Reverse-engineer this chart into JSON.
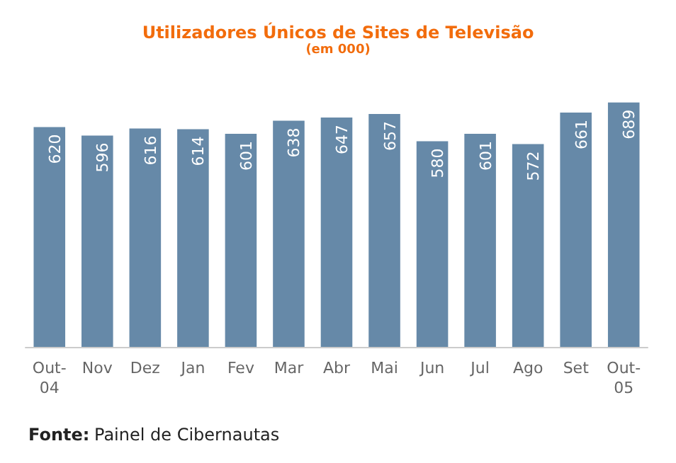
{
  "chart_data": {
    "type": "bar",
    "title": "Utilizadores Únicos de Sites de Televisão",
    "subtitle": "(em 000)",
    "categories": [
      "Out-04",
      "Nov",
      "Dez",
      "Jan",
      "Fev",
      "Mar",
      "Abr",
      "Mai",
      "Jun",
      "Jul",
      "Ago",
      "Set",
      "Out-05"
    ],
    "values": [
      620,
      596,
      616,
      614,
      601,
      638,
      647,
      657,
      580,
      601,
      572,
      661,
      689
    ],
    "color": "#6689a8",
    "data_labels": true,
    "annotations": [
      "Fonte: Painel de Cibernautas"
    ]
  }
}
